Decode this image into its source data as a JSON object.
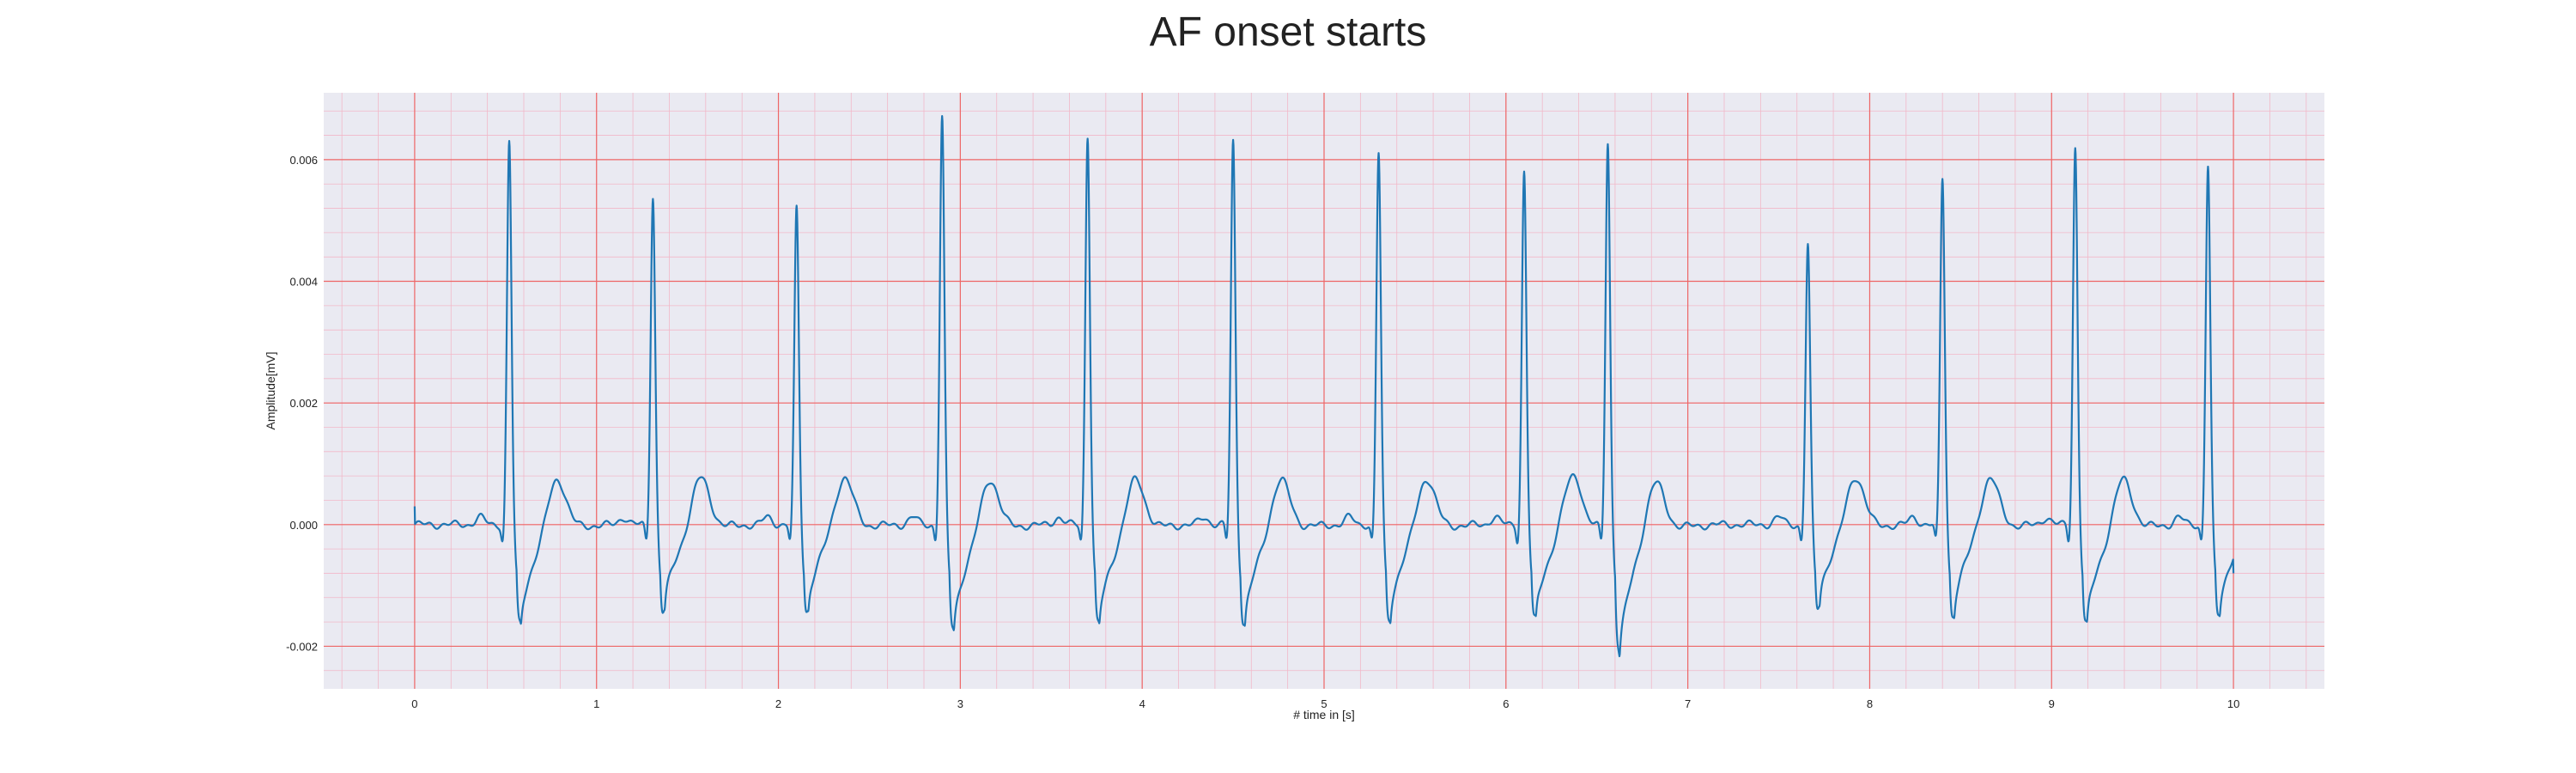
{
  "chart_data": {
    "type": "line",
    "title": "AF onset starts",
    "xlabel": "# time in [s]",
    "ylabel": "Amplitude[mV]",
    "xlim": [
      -0.5,
      10.5
    ],
    "ylim": [
      -0.0027,
      0.0071
    ],
    "xticks": [
      0,
      1,
      2,
      3,
      4,
      5,
      6,
      7,
      8,
      9,
      10
    ],
    "xtick_labels": [
      "0",
      "1",
      "2",
      "3",
      "4",
      "5",
      "6",
      "7",
      "8",
      "9",
      "10"
    ],
    "yticks": [
      -0.002,
      0.0,
      0.002,
      0.004,
      0.006
    ],
    "ytick_labels": [
      "-0.002",
      "0.000",
      "0.002",
      "0.004",
      "0.006"
    ],
    "grid": true,
    "grid_major_color": "#ee6666",
    "grid_minor_color": "#f2b8c8",
    "background_color": "#eaeaf2",
    "line_color": "#1f77b4",
    "beats": [
      {
        "t": 0.52,
        "r_peak": 0.0063,
        "s_trough": -0.0017
      },
      {
        "t": 1.31,
        "r_peak": 0.0054,
        "s_trough": -0.0014
      },
      {
        "t": 2.1,
        "r_peak": 0.0052,
        "s_trough": -0.0014
      },
      {
        "t": 2.9,
        "r_peak": 0.0067,
        "s_trough": -0.0018
      },
      {
        "t": 3.7,
        "r_peak": 0.0064,
        "s_trough": -0.0017
      },
      {
        "t": 4.5,
        "r_peak": 0.0063,
        "s_trough": -0.0017
      },
      {
        "t": 5.3,
        "r_peak": 0.0061,
        "s_trough": -0.0016
      },
      {
        "t": 6.1,
        "r_peak": 0.0058,
        "s_trough": -0.0016
      },
      {
        "t": 6.56,
        "r_peak": 0.0063,
        "s_trough": -0.0023
      },
      {
        "t": 7.66,
        "r_peak": 0.0046,
        "s_trough": -0.0013
      },
      {
        "t": 8.4,
        "r_peak": 0.0057,
        "s_trough": -0.0015
      },
      {
        "t": 9.13,
        "r_peak": 0.0062,
        "s_trough": -0.0017
      },
      {
        "t": 9.86,
        "r_peak": 0.0059,
        "s_trough": -0.0015
      }
    ],
    "signal_start": {
      "t": 0.0,
      "v": 0.0003
    },
    "signal_end": {
      "t": 10.0,
      "v": -0.0008
    }
  }
}
